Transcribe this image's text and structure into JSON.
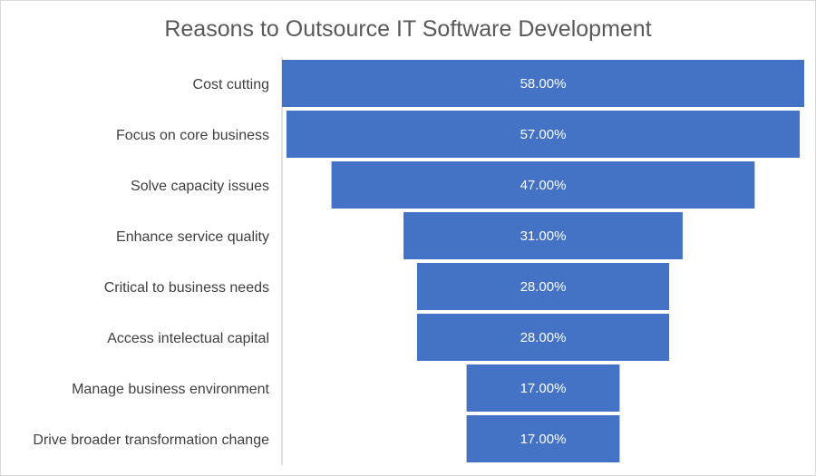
{
  "chart_data": {
    "type": "funnel",
    "title": "Reasons to Outsource IT Software Development",
    "categories": [
      "Cost cutting",
      "Focus on core business",
      "Solve capacity issues",
      "Enhance service quality",
      "Critical to business needs",
      "Access intelectual capital",
      "Manage business environment",
      "Drive broader transformation change"
    ],
    "values": [
      58,
      57,
      47,
      31,
      28,
      28,
      17,
      17
    ],
    "data_labels": [
      "58.00%",
      "57.00%",
      "47.00%",
      "31.00%",
      "28.00%",
      "28.00%",
      "17.00%",
      "17.00%"
    ],
    "bar_color": "#4472C4",
    "grid": false,
    "legend": "none"
  }
}
